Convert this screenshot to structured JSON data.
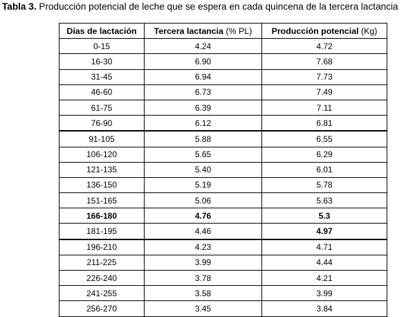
{
  "caption": {
    "label": "Tabla 3.",
    "text": "Producción potencial de leche que se espera en cada quincena de la tercera lactancia"
  },
  "table": {
    "headers": [
      {
        "bold": "Días de lactación",
        "rest": ""
      },
      {
        "bold": "Tercera lactancia",
        "rest": " (% PL)"
      },
      {
        "bold": "Producción potencial",
        "rest": " (Kg)"
      }
    ],
    "rows": [
      {
        "dias": "0-15",
        "pct": "4.24",
        "kg": "4.72"
      },
      {
        "dias": "16-30",
        "pct": "6.90",
        "kg": "7.68"
      },
      {
        "dias": "31-45",
        "pct": "6.94",
        "kg": "7.73"
      },
      {
        "dias": "46-60",
        "pct": "6.73",
        "kg": "7.49"
      },
      {
        "dias": "61-75",
        "pct": "6.39",
        "kg": "7.11"
      },
      {
        "dias": "76-90",
        "pct": "6.12",
        "kg": "6.81"
      },
      {
        "dias": "91-105",
        "pct": "5.88",
        "kg": "6.55"
      },
      {
        "dias": "106-120",
        "pct": "5.65",
        "kg": "6.29"
      },
      {
        "dias": "121-135",
        "pct": "5.40",
        "kg": "6.01"
      },
      {
        "dias": "136-150",
        "pct": "5.19",
        "kg": "5.78"
      },
      {
        "dias": "151-165",
        "pct": "5.06",
        "kg": "5.63"
      },
      {
        "dias": "166-180",
        "pct": "4.76",
        "kg": "5.3"
      },
      {
        "dias": "181-195",
        "pct": "4.46",
        "kg": "4.97"
      },
      {
        "dias": "196-210",
        "pct": "4.23",
        "kg": "4.71"
      },
      {
        "dias": "211-225",
        "pct": "3.99",
        "kg": "4.44"
      },
      {
        "dias": "226-240",
        "pct": "3.78",
        "kg": "4.21"
      },
      {
        "dias": "241-255",
        "pct": "3.58",
        "kg": "3.99"
      },
      {
        "dias": "256-270",
        "pct": "3.45",
        "kg": "3.84"
      }
    ]
  }
}
